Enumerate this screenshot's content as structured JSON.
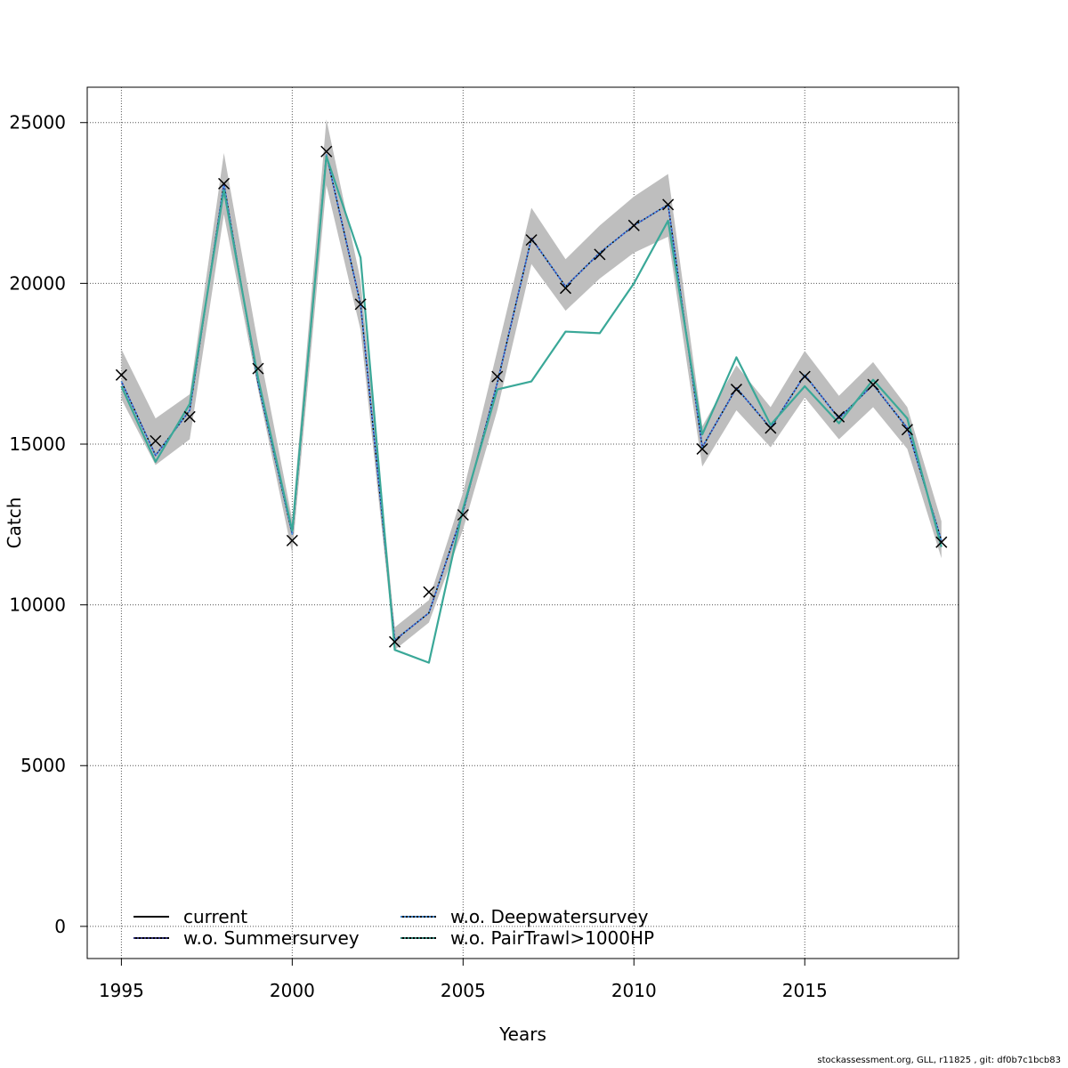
{
  "chart_data": {
    "type": "line",
    "xlabel": "Years",
    "ylabel": "Catch",
    "xlim": [
      1994,
      2019.5
    ],
    "ylim": [
      -1000,
      26100
    ],
    "x_ticks": [
      1995,
      2000,
      2005,
      2010,
      2015
    ],
    "y_ticks": [
      0,
      5000,
      10000,
      15000,
      20000,
      25000
    ],
    "grid": true,
    "x": [
      1995,
      1996,
      1997,
      1998,
      1999,
      2000,
      2001,
      2002,
      2003,
      2004,
      2005,
      2006,
      2007,
      2008,
      2009,
      2010,
      2011,
      2012,
      2013,
      2014,
      2015,
      2016,
      2017,
      2018,
      2019
    ],
    "observed": {
      "marker": "x",
      "values": [
        17150,
        15100,
        15850,
        23100,
        17350,
        12000,
        24100,
        19350,
        8850,
        10400,
        12800,
        17100,
        21350,
        19850,
        20900,
        21800,
        22450,
        14850,
        16700,
        15500,
        17100,
        15850,
        16850,
        15450,
        11950
      ]
    },
    "confidence_band": {
      "color": "#bebebe",
      "lower": [
        16400,
        14350,
        15150,
        22150,
        16700,
        11600,
        23050,
        18550,
        8600,
        9450,
        12350,
        16050,
        20600,
        19150,
        20150,
        20950,
        21450,
        14300,
        16050,
        14900,
        16450,
        15150,
        16150,
        14850,
        11450
      ],
      "upper": [
        17950,
        15800,
        16550,
        24050,
        18100,
        12650,
        25100,
        20100,
        9300,
        10150,
        13500,
        17900,
        22350,
        20750,
        21800,
        22700,
        23400,
        15550,
        17450,
        16150,
        17900,
        16500,
        17550,
        16150,
        12600
      ]
    },
    "series": [
      {
        "name": "current",
        "color": "#000000",
        "dash": "solid",
        "values": [
          16950,
          14650,
          16050,
          23100,
          16900,
          12200,
          24000,
          19350,
          8900,
          9750,
          12900,
          16900,
          21400,
          19900,
          20950,
          21800,
          22450,
          14900,
          16750,
          15500,
          17150,
          15800,
          16850,
          15500,
          12000
        ]
      },
      {
        "name": "w.o. Summersurvey",
        "color": "#3a3a9e",
        "dash": "dashed",
        "values": [
          16950,
          14650,
          16050,
          23100,
          16900,
          12200,
          24000,
          19350,
          8900,
          9750,
          12900,
          16900,
          21400,
          19900,
          20950,
          21800,
          22450,
          14900,
          16750,
          15500,
          17150,
          15800,
          16850,
          15500,
          12000
        ]
      },
      {
        "name": "w.o. Deepwatersurvey",
        "color": "#4da6ff",
        "dash": "dotted",
        "values": [
          16950,
          14650,
          16050,
          23100,
          16900,
          12200,
          24000,
          19350,
          8900,
          9750,
          12900,
          16900,
          21400,
          19900,
          20950,
          21800,
          22450,
          14900,
          16750,
          15500,
          17150,
          15800,
          16850,
          15500,
          12000
        ]
      },
      {
        "name": "w.o. PairTrawl>1000HP",
        "color": "#3aa898",
        "dash": "solid",
        "values": [
          16800,
          14450,
          16250,
          22900,
          17050,
          12300,
          23950,
          20800,
          8600,
          8200,
          13000,
          16700,
          16950,
          18500,
          18450,
          20000,
          21950,
          15300,
          17700,
          15600,
          16800,
          15650,
          17000,
          15800,
          11800
        ]
      }
    ],
    "legend": {
      "placement": "bottom-left",
      "columns": 2
    }
  },
  "footer": "stockassessment.org, GLL, r11825 , git: df0b7c1bcb83"
}
